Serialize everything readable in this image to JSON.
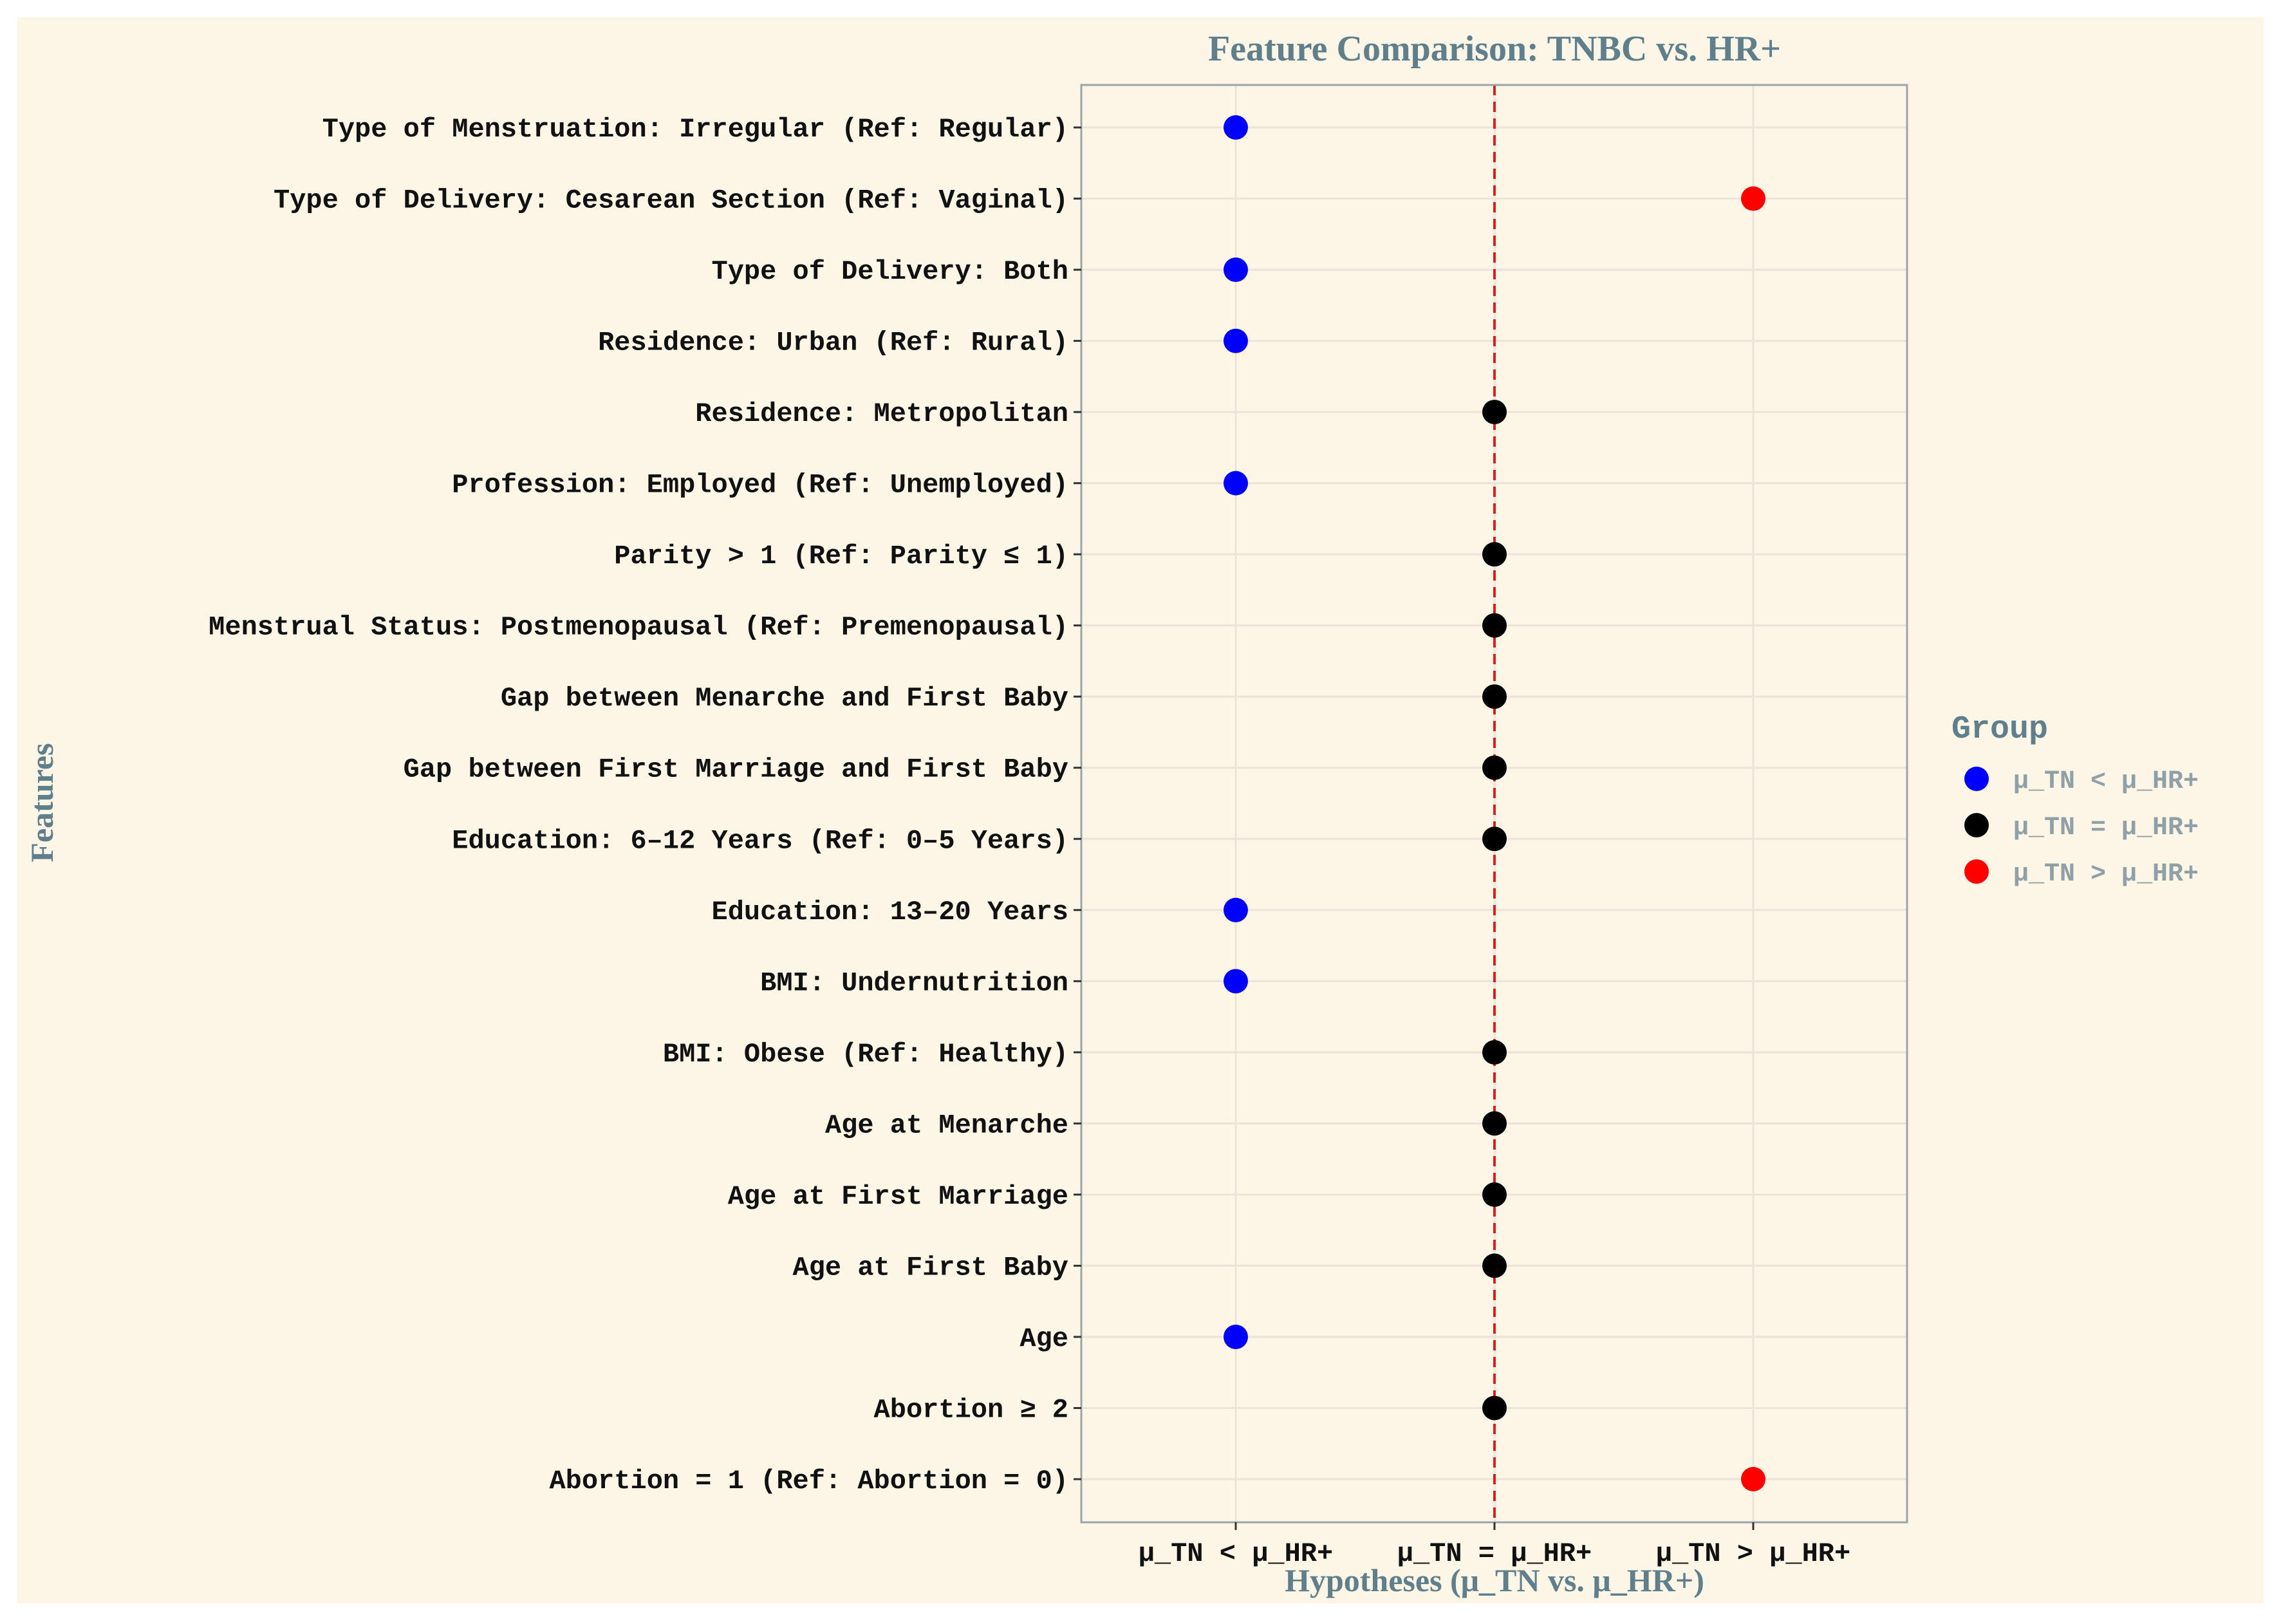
{
  "chart_data": {
    "type": "scatter",
    "title": "Feature Comparison: TNBC vs. HR+",
    "xlabel": "Hypotheses (μ_TN vs. μ_HR+)",
    "ylabel": "Features",
    "x_categories": [
      "μ_TN < μ_HR+",
      "μ_TN = μ_HR+",
      "μ_TN > μ_HR+"
    ],
    "reference_line": {
      "x": "μ_TN = μ_HR+",
      "style": "dashed",
      "color": "#e31a1c"
    },
    "legend": {
      "title": "Group",
      "placement": "right",
      "entries": [
        {
          "label": "μ_TN < μ_HR+",
          "color": "#0000ff"
        },
        {
          "label": "μ_TN = μ_HR+",
          "color": "#000000"
        },
        {
          "label": "μ_TN > μ_HR+",
          "color": "#ff0000"
        }
      ]
    },
    "grid": true,
    "colors": {
      "background": "#fdf5e6",
      "panel_border": "#9aa5aa",
      "title_text": "#5f7f8c",
      "legend_text": "#8fa0a6",
      "grid": "#ebe4d8"
    },
    "points": [
      {
        "feature": "Type of Menstruation: Irregular (Ref: Regular)",
        "hypothesis": "μ_TN < μ_HR+"
      },
      {
        "feature": "Type of Delivery: Cesarean Section (Ref: Vaginal)",
        "hypothesis": "μ_TN > μ_HR+"
      },
      {
        "feature": "Type of Delivery: Both",
        "hypothesis": "μ_TN < μ_HR+"
      },
      {
        "feature": "Residence: Urban (Ref: Rural)",
        "hypothesis": "μ_TN < μ_HR+"
      },
      {
        "feature": "Residence: Metropolitan",
        "hypothesis": "μ_TN = μ_HR+"
      },
      {
        "feature": "Profession: Employed (Ref: Unemployed)",
        "hypothesis": "μ_TN < μ_HR+"
      },
      {
        "feature": "Parity > 1 (Ref: Parity ≤ 1)",
        "hypothesis": "μ_TN = μ_HR+"
      },
      {
        "feature": "Menstrual Status: Postmenopausal (Ref: Premenopausal)",
        "hypothesis": "μ_TN = μ_HR+"
      },
      {
        "feature": "Gap between Menarche and First Baby",
        "hypothesis": "μ_TN = μ_HR+"
      },
      {
        "feature": "Gap between First Marriage and First Baby",
        "hypothesis": "μ_TN = μ_HR+"
      },
      {
        "feature": "Education: 6–12 Years (Ref: 0–5 Years)",
        "hypothesis": "μ_TN = μ_HR+"
      },
      {
        "feature": "Education: 13–20 Years",
        "hypothesis": "μ_TN < μ_HR+"
      },
      {
        "feature": "BMI: Undernutrition",
        "hypothesis": "μ_TN < μ_HR+"
      },
      {
        "feature": "BMI: Obese (Ref: Healthy)",
        "hypothesis": "μ_TN = μ_HR+"
      },
      {
        "feature": "Age at Menarche",
        "hypothesis": "μ_TN = μ_HR+"
      },
      {
        "feature": "Age at First Marriage",
        "hypothesis": "μ_TN = μ_HR+"
      },
      {
        "feature": "Age at First Baby",
        "hypothesis": "μ_TN = μ_HR+"
      },
      {
        "feature": "Age",
        "hypothesis": "μ_TN < μ_HR+"
      },
      {
        "feature": "Abortion ≥ 2",
        "hypothesis": "μ_TN = μ_HR+"
      },
      {
        "feature": "Abortion = 1 (Ref: Abortion = 0)",
        "hypothesis": "μ_TN > μ_HR+"
      }
    ]
  }
}
